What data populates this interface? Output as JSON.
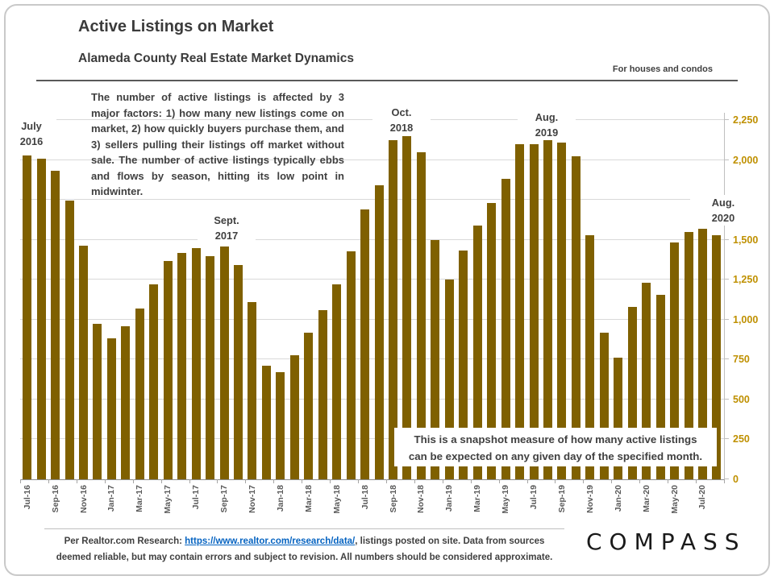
{
  "header": {
    "title": "Active Listings on Market",
    "subtitle": "Alameda County Real Estate Market Dynamics",
    "tagline": "For houses and condos"
  },
  "description": "The number of active listings is affected by 3 major factors: 1) how many new listings come on market, 2) how quickly buyers purchase them, and 3) sellers pulling their listings off market without sale. The number of active listings typically ebbs and flows by season, hitting its low point in midwinter.",
  "annotations": [
    {
      "line1": "July",
      "line2": "2016"
    },
    {
      "line1": "Sept.",
      "line2": "2017"
    },
    {
      "line1": "Oct.",
      "line2": "2018"
    },
    {
      "line1": "Aug.",
      "line2": "2019"
    },
    {
      "line1": "Aug.",
      "line2": "2020"
    }
  ],
  "snapshot_note": {
    "line1": "This is a snapshot measure of how many active listings",
    "line2": "can be expected on any given day of the specified month."
  },
  "chart_data": {
    "type": "bar",
    "title": "Active Listings on Market",
    "xlabel": "",
    "ylabel": "",
    "categories": [
      "Jul-16",
      "Aug-16",
      "Sep-16",
      "Oct-16",
      "Nov-16",
      "Dec-16",
      "Jan-17",
      "Feb-17",
      "Mar-17",
      "Apr-17",
      "May-17",
      "Jun-17",
      "Jul-17",
      "Aug-17",
      "Sep-17",
      "Oct-17",
      "Nov-17",
      "Dec-17",
      "Jan-18",
      "Feb-18",
      "Mar-18",
      "Apr-18",
      "May-18",
      "Jun-18",
      "Jul-18",
      "Aug-18",
      "Sep-18",
      "Oct-18",
      "Nov-18",
      "Dec-18",
      "Jan-19",
      "Feb-19",
      "Mar-19",
      "Apr-19",
      "May-19",
      "Jun-19",
      "Jul-19",
      "Aug-19",
      "Sep-19",
      "Oct-19",
      "Nov-19",
      "Dec-19",
      "Jan-20",
      "Feb-20",
      "Mar-20",
      "Apr-20",
      "May-20",
      "Jun-20",
      "Jul-20",
      "Aug-20"
    ],
    "values": [
      2030,
      2010,
      1930,
      1745,
      1465,
      975,
      885,
      960,
      1070,
      1220,
      1365,
      1420,
      1450,
      1400,
      1460,
      1340,
      1110,
      710,
      670,
      775,
      920,
      1060,
      1220,
      1430,
      1690,
      1840,
      2125,
      2150,
      2050,
      1500,
      1250,
      1435,
      1590,
      1730,
      1880,
      2100,
      2100,
      2125,
      2110,
      2025,
      1530,
      920,
      760,
      1080,
      1230,
      1155,
      1485,
      1550,
      1570,
      1530
    ],
    "x_tick_labels_every": 2,
    "ylim": [
      0,
      2250
    ],
    "ytick_step": 250,
    "yticks_visible": [
      0,
      250,
      500,
      750,
      1000,
      1250,
      1500,
      2000,
      2250
    ],
    "grid": true,
    "legend_position": "none",
    "bar_color": "#7F6000",
    "axis_label_color": "#BF9000"
  },
  "footer": {
    "line1_prefix": "Per Realtor.com Research: ",
    "link": "https://www.realtor.com/research/data/",
    "line1_suffix": ", listings posted on site. Data from sources",
    "line2": "deemed reliable, but may contain errors and subject to revision.  All numbers should be considered approximate.",
    "logo": "COMPASS"
  },
  "colors": {
    "bar": "#7F6000",
    "y_axis_labels": "#BF9000",
    "text": "#404040",
    "link": "#0563C1",
    "gridline": "#D9D9D9"
  }
}
